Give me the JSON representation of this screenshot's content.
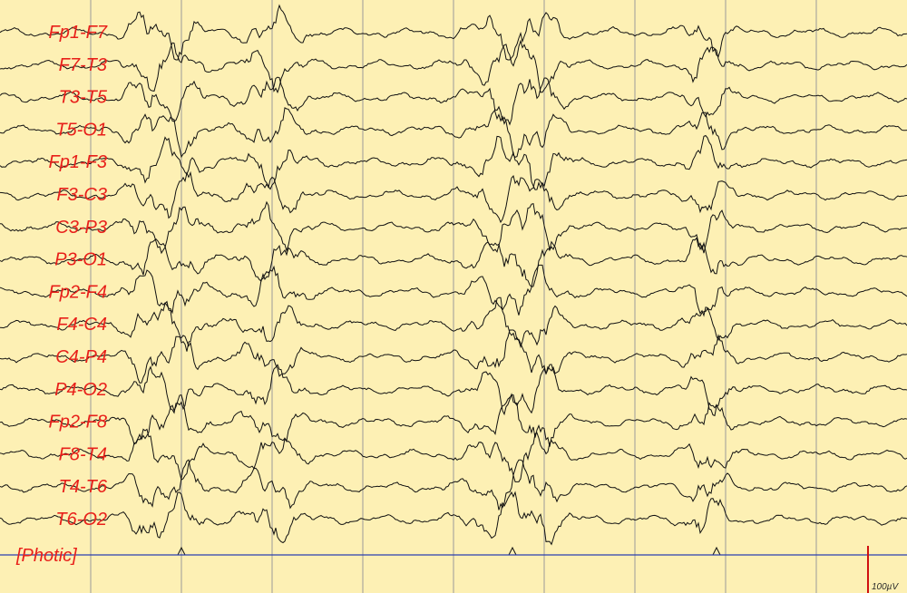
{
  "montage": {
    "channels": [
      "Fp1-F7",
      "F7-T3",
      "T3-T5",
      "T5-O1",
      "Fp1-F3",
      "F3-C3",
      "C3-P3",
      "P3-O1",
      "Fp2-F4",
      "F4-C4",
      "C4-P4",
      "P4-O2",
      "Fp2-F8",
      "F8-T4",
      "T4-T6",
      "T6-O2"
    ],
    "photic_label": "[Photic]"
  },
  "calibration": {
    "label": "100µV"
  },
  "colors": {
    "background": "#fdf0b4",
    "grid": "#9a9a9a",
    "trace": "#111111",
    "label": "#e8201a",
    "photic": "#2b3fb0",
    "calibration": "#d01010"
  }
}
